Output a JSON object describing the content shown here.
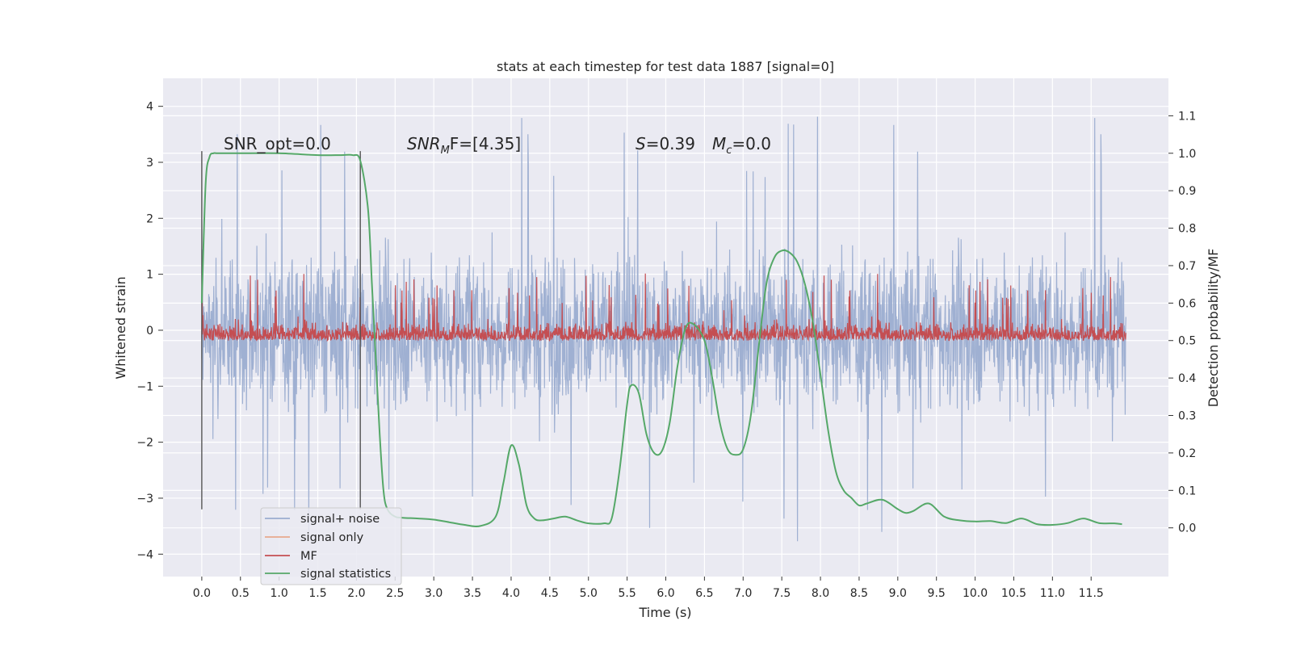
{
  "chart_data": {
    "type": "line",
    "title": "stats at each timestep for test data 1887 [signal=0]",
    "xlabel": "Time (s)",
    "ylabel": "Whitened strain",
    "y2label": "Detection probability/MF",
    "xlim": [
      -0.5,
      12.5
    ],
    "ylim": [
      -4.4,
      4.5
    ],
    "y2lim": [
      -0.13,
      1.2
    ],
    "x_ticks": [
      "0.0",
      "0.5",
      "1.0",
      "1.5",
      "2.0",
      "2.5",
      "3.0",
      "3.5",
      "4.0",
      "4.5",
      "5.0",
      "5.5",
      "6.0",
      "6.5",
      "7.0",
      "7.5",
      "8.0",
      "8.5",
      "9.0",
      "9.5",
      "10.0",
      "10.5",
      "11.0",
      "11.5"
    ],
    "y_ticks": [
      "4",
      "3",
      "2",
      "1",
      "0",
      "−1",
      "−2",
      "−3",
      "−4"
    ],
    "y2_ticks": [
      "1.1",
      "1.0",
      "0.9",
      "0.8",
      "0.7",
      "0.6",
      "0.5",
      "0.4",
      "0.3",
      "0.2",
      "0.1",
      "0.0"
    ],
    "grid": true,
    "legend_position": "lower-left",
    "annotations": {
      "snr_opt": "SNR_opt=0.0",
      "snr_mf_prefix": "SNR",
      "snr_mf_sub": "M",
      "snr_mf_rest": "F=[4.35]",
      "s_var": "S",
      "s_val": "=0.39",
      "mc_var": "M",
      "mc_sub": "c",
      "mc_val": "=0.0"
    },
    "vertical_markers": [
      0.0,
      2.05
    ],
    "series": [
      {
        "name": "signal+ noise",
        "color": "#9badd0",
        "axis": "left",
        "style": "noise",
        "x_range": [
          0.0,
          11.95
        ],
        "envelope": {
          "typical_min": -2.4,
          "typical_max": 2.5,
          "extreme_min": -4.05,
          "extreme_max": 4.1
        }
      },
      {
        "name": "signal only",
        "color": "#e8a98e",
        "axis": "left",
        "values": []
      },
      {
        "name": "MF",
        "color": "#c44e52",
        "axis": "right",
        "style": "noise",
        "x_range": [
          0.0,
          11.95
        ],
        "envelope": {
          "base": 0.5,
          "typical_max": 0.58,
          "extreme_max": 0.68
        }
      },
      {
        "name": "signal statistics",
        "color": "#55a868",
        "axis": "right",
        "x": [
          0.0,
          0.05,
          0.1,
          0.15,
          0.2,
          0.3,
          0.5,
          1.0,
          1.5,
          1.8,
          1.95,
          2.05,
          2.15,
          2.2,
          2.25,
          2.3,
          2.35,
          2.4,
          2.5,
          2.6,
          2.8,
          3.0,
          3.2,
          3.4,
          3.6,
          3.8,
          3.9,
          4.0,
          4.1,
          4.2,
          4.3,
          4.4,
          4.55,
          4.7,
          4.85,
          5.0,
          5.2,
          5.3,
          5.4,
          5.5,
          5.55,
          5.65,
          5.75,
          5.85,
          5.95,
          6.05,
          6.15,
          6.25,
          6.35,
          6.5,
          6.6,
          6.7,
          6.8,
          6.9,
          7.0,
          7.1,
          7.2,
          7.3,
          7.4,
          7.5,
          7.6,
          7.7,
          7.8,
          7.9,
          8.0,
          8.1,
          8.2,
          8.3,
          8.4,
          8.5,
          8.6,
          8.8,
          9.0,
          9.1,
          9.2,
          9.4,
          9.6,
          9.8,
          10.0,
          10.2,
          10.4,
          10.6,
          10.8,
          11.0,
          11.2,
          11.4,
          11.6,
          11.8,
          11.9
        ],
        "values": [
          0.6,
          0.92,
          0.99,
          1.0,
          1.0,
          1.0,
          1.0,
          1.0,
          0.995,
          0.995,
          0.995,
          0.98,
          0.85,
          0.65,
          0.45,
          0.25,
          0.1,
          0.05,
          0.03,
          0.027,
          0.025,
          0.022,
          0.015,
          0.008,
          0.005,
          0.03,
          0.12,
          0.22,
          0.17,
          0.06,
          0.025,
          0.02,
          0.025,
          0.03,
          0.02,
          0.012,
          0.012,
          0.025,
          0.15,
          0.33,
          0.38,
          0.36,
          0.25,
          0.2,
          0.205,
          0.28,
          0.43,
          0.53,
          0.545,
          0.5,
          0.4,
          0.28,
          0.21,
          0.195,
          0.21,
          0.3,
          0.48,
          0.65,
          0.72,
          0.74,
          0.735,
          0.71,
          0.65,
          0.55,
          0.41,
          0.26,
          0.15,
          0.1,
          0.08,
          0.06,
          0.065,
          0.075,
          0.05,
          0.04,
          0.045,
          0.065,
          0.03,
          0.02,
          0.017,
          0.018,
          0.013,
          0.025,
          0.01,
          0.008,
          0.013,
          0.025,
          0.013,
          0.012,
          0.01
        ]
      }
    ]
  }
}
